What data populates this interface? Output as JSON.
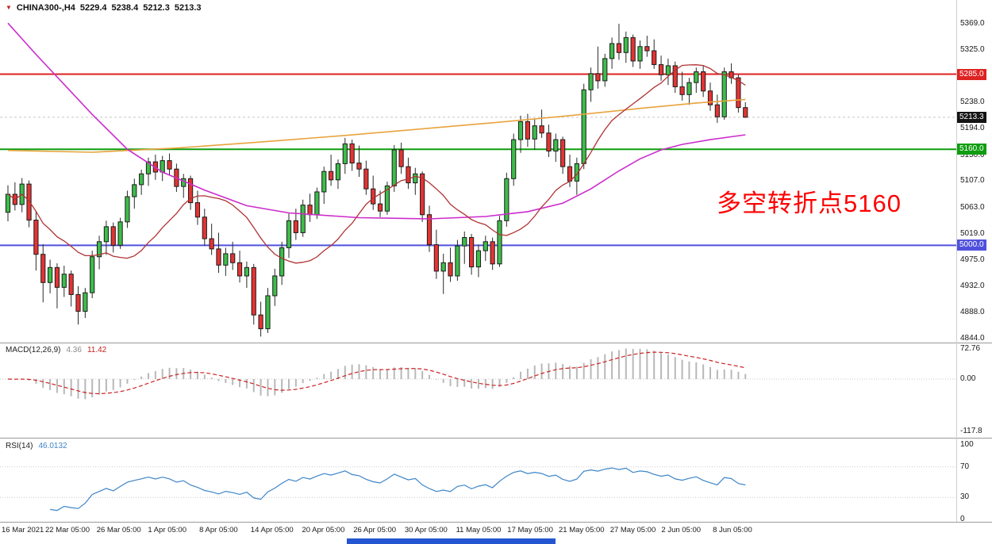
{
  "terminal": {
    "marker_icon": "▼",
    "symbol": "CHINA300-,H4",
    "open": "5229.4",
    "high": "5238.4",
    "low": "5212.3",
    "close": "5213.3"
  },
  "annotation": {
    "text": "多空转折点5160",
    "color": "#ff0000"
  },
  "levels": [
    {
      "value": 5285,
      "color": "#dd2222"
    },
    {
      "value": 5160,
      "color": "#0f9d0f"
    },
    {
      "value": 5000,
      "color": "#5050dd"
    }
  ],
  "current_price": {
    "value": 5213.3
  },
  "price_axis": {
    "ticks": [
      {
        "v": 5369,
        "label": "5369.0"
      },
      {
        "v": 5325,
        "label": "5325.0"
      },
      {
        "v": 5238,
        "label": "5238.0"
      },
      {
        "v": 5194,
        "label": "5194.0"
      },
      {
        "v": 5150,
        "label": "5150.0"
      },
      {
        "v": 5107,
        "label": "5107.0"
      },
      {
        "v": 5063,
        "label": "5063.0"
      },
      {
        "v": 5019,
        "label": "5019.0"
      },
      {
        "v": 4975,
        "label": "4975.0"
      },
      {
        "v": 4932,
        "label": "4932.0"
      },
      {
        "v": 4888,
        "label": "4888.0"
      },
      {
        "v": 4844,
        "label": "4844.0"
      }
    ],
    "badges": [
      {
        "v": 5285,
        "label": "5285.0",
        "color": "#dd2222"
      },
      {
        "v": 5213.3,
        "label": "5213.3",
        "color": "#141414"
      },
      {
        "v": 5160,
        "label": "5160.0",
        "color": "#0f9d0f"
      },
      {
        "v": 5000,
        "label": "5000.0",
        "color": "#5050dd"
      }
    ]
  },
  "time_axis": {
    "labels": [
      "16 Mar 2021",
      "22 Mar 05:00",
      "26 Mar 05:00",
      "1 Apr 05:00",
      "8 Apr 05:00",
      "14 Apr 05:00",
      "20 Apr 05:00",
      "26 Apr 05:00",
      "30 Apr 05:00",
      "11 May 05:00",
      "17 May 05:00",
      "21 May 05:00",
      "27 May 05:00",
      "2 Jun 05:00",
      "8 Jun 05:00"
    ]
  },
  "indicators": {
    "macd": {
      "name": "MACD(12,26,9)",
      "value1": "4.36",
      "value2": "11.42",
      "axis": [
        {
          "v": 72.76,
          "label": "72.76"
        },
        {
          "v": 0,
          "label": "0.00"
        },
        {
          "v": -117.8,
          "label": "-117.8"
        }
      ]
    },
    "rsi": {
      "name": "RSI(14)",
      "value": "46.0132",
      "axis": [
        {
          "v": 100,
          "label": "100"
        },
        {
          "v": 70,
          "label": "70"
        },
        {
          "v": 30,
          "label": "30"
        },
        {
          "v": 0,
          "label": "0"
        }
      ],
      "levels": [
        70,
        30
      ]
    }
  },
  "colors": {
    "bull": "#3dbd4a",
    "bear": "#e53333",
    "candle_border": "#1c1c1c",
    "ma_fast": "#b03333",
    "ma_mid": "#e8a33d",
    "ma_slow": "#cc2ccc",
    "macd_hist": "#b8b8b8",
    "macd_signal": "#cc2222",
    "rsi_line": "#3d85c8",
    "bottom_bar": "#2456d2"
  },
  "chart_data": {
    "type": "candlestick",
    "title": "CHINA300- H4",
    "ylim": [
      4838,
      5398
    ],
    "key_levels": [
      5285,
      5160,
      5000
    ],
    "last_close": 5213.3,
    "candles": [
      [
        5055,
        5100,
        5040,
        5085
      ],
      [
        5085,
        5105,
        5058,
        5068
      ],
      [
        5068,
        5112,
        5055,
        5102
      ],
      [
        5102,
        5108,
        5030,
        5042
      ],
      [
        5042,
        5056,
        4958,
        4985
      ],
      [
        4985,
        5002,
        4905,
        4938
      ],
      [
        4938,
        4976,
        4920,
        4963
      ],
      [
        4963,
        4970,
        4895,
        4930
      ],
      [
        4930,
        4966,
        4914,
        4952
      ],
      [
        4952,
        4958,
        4898,
        4918
      ],
      [
        4918,
        4932,
        4868,
        4890
      ],
      [
        4890,
        4929,
        4879,
        4921
      ],
      [
        4921,
        4991,
        4912,
        4981
      ],
      [
        4981,
        5016,
        4960,
        5006
      ],
      [
        5006,
        5041,
        4984,
        5031
      ],
      [
        5031,
        5038,
        4988,
        5000
      ],
      [
        5000,
        5046,
        4994,
        5039
      ],
      [
        5039,
        5091,
        5029,
        5081
      ],
      [
        5081,
        5111,
        5061,
        5101
      ],
      [
        5101,
        5126,
        5084,
        5119
      ],
      [
        5119,
        5146,
        5099,
        5139
      ],
      [
        5139,
        5151,
        5109,
        5122
      ],
      [
        5122,
        5149,
        5107,
        5141
      ],
      [
        5141,
        5153,
        5117,
        5127
      ],
      [
        5127,
        5136,
        5089,
        5098
      ],
      [
        5098,
        5119,
        5079,
        5111
      ],
      [
        5111,
        5116,
        5059,
        5071
      ],
      [
        5071,
        5091,
        5034,
        5047
      ],
      [
        5047,
        5061,
        4999,
        5011
      ],
      [
        5011,
        5036,
        4984,
        4994
      ],
      [
        4994,
        5021,
        4954,
        4967
      ],
      [
        4967,
        4996,
        4949,
        4986
      ],
      [
        4986,
        5006,
        4959,
        4971
      ],
      [
        4971,
        4991,
        4938,
        4949
      ],
      [
        4949,
        4973,
        4929,
        4963
      ],
      [
        4963,
        4969,
        4868,
        4884
      ],
      [
        4884,
        4906,
        4848,
        4861
      ],
      [
        4861,
        4929,
        4854,
        4916
      ],
      [
        4916,
        4961,
        4899,
        4949
      ],
      [
        4949,
        5006,
        4934,
        4996
      ],
      [
        4996,
        5053,
        4979,
        5041
      ],
      [
        5041,
        5061,
        5009,
        5021
      ],
      [
        5021,
        5076,
        5014,
        5067
      ],
      [
        5067,
        5086,
        5039,
        5051
      ],
      [
        5051,
        5096,
        5044,
        5089
      ],
      [
        5089,
        5131,
        5069,
        5123
      ],
      [
        5123,
        5151,
        5099,
        5109
      ],
      [
        5109,
        5143,
        5094,
        5136
      ],
      [
        5136,
        5179,
        5119,
        5169
      ],
      [
        5169,
        5176,
        5124,
        5137
      ],
      [
        5137,
        5166,
        5114,
        5127
      ],
      [
        5127,
        5141,
        5084,
        5094
      ],
      [
        5094,
        5116,
        5059,
        5069
      ],
      [
        5069,
        5091,
        5047,
        5057
      ],
      [
        5057,
        5106,
        5051,
        5099
      ],
      [
        5099,
        5167,
        5089,
        5159
      ],
      [
        5159,
        5171,
        5119,
        5131
      ],
      [
        5131,
        5146,
        5094,
        5104
      ],
      [
        5104,
        5129,
        5084,
        5119
      ],
      [
        5119,
        5123,
        5039,
        5051
      ],
      [
        5051,
        5066,
        4989,
        5001
      ],
      [
        5001,
        5026,
        4944,
        4957
      ],
      [
        4957,
        4986,
        4919,
        4971
      ],
      [
        4971,
        4996,
        4939,
        4949
      ],
      [
        4949,
        5009,
        4941,
        4999
      ],
      [
        4999,
        5023,
        4969,
        5013
      ],
      [
        5013,
        5019,
        4951,
        4964
      ],
      [
        4964,
        5001,
        4947,
        4991
      ],
      [
        4991,
        5016,
        4974,
        5006
      ],
      [
        5006,
        5013,
        4959,
        4969
      ],
      [
        4969,
        5049,
        4964,
        5041
      ],
      [
        5041,
        5121,
        5031,
        5111
      ],
      [
        5111,
        5186,
        5099,
        5176
      ],
      [
        5176,
        5216,
        5154,
        5206
      ],
      [
        5206,
        5219,
        5164,
        5177
      ],
      [
        5177,
        5211,
        5159,
        5199
      ],
      [
        5199,
        5226,
        5179,
        5187
      ],
      [
        5187,
        5201,
        5147,
        5157
      ],
      [
        5157,
        5186,
        5139,
        5176
      ],
      [
        5176,
        5181,
        5119,
        5131
      ],
      [
        5131,
        5151,
        5097,
        5107
      ],
      [
        5107,
        5146,
        5084,
        5136
      ],
      [
        5136,
        5269,
        5127,
        5259
      ],
      [
        5259,
        5296,
        5239,
        5286
      ],
      [
        5286,
        5331,
        5261,
        5274
      ],
      [
        5274,
        5319,
        5264,
        5311
      ],
      [
        5311,
        5346,
        5294,
        5336
      ],
      [
        5336,
        5369,
        5309,
        5321
      ],
      [
        5321,
        5356,
        5304,
        5346
      ],
      [
        5346,
        5351,
        5297,
        5307
      ],
      [
        5307,
        5341,
        5294,
        5331
      ],
      [
        5331,
        5349,
        5314,
        5324
      ],
      [
        5324,
        5343,
        5294,
        5301
      ],
      [
        5301,
        5316,
        5274,
        5284
      ],
      [
        5284,
        5311,
        5267,
        5299
      ],
      [
        5299,
        5306,
        5254,
        5264
      ],
      [
        5264,
        5289,
        5241,
        5251
      ],
      [
        5251,
        5279,
        5234,
        5271
      ],
      [
        5271,
        5296,
        5254,
        5289
      ],
      [
        5289,
        5299,
        5247,
        5257
      ],
      [
        5257,
        5271,
        5224,
        5234
      ],
      [
        5234,
        5251,
        5204,
        5214
      ],
      [
        5214,
        5296,
        5209,
        5289
      ],
      [
        5289,
        5303,
        5269,
        5279
      ],
      [
        5279,
        5284,
        5221,
        5229.4
      ],
      [
        5229.4,
        5238.4,
        5212.3,
        5213.3
      ]
    ],
    "moving_averages": [
      {
        "name": "ma-orange-line",
        "color_key": "ma_mid",
        "points": [
          [
            0,
            5158
          ],
          [
            12,
            5155
          ],
          [
            24,
            5162
          ],
          [
            36,
            5172
          ],
          [
            48,
            5183
          ],
          [
            60,
            5195
          ],
          [
            70,
            5205
          ],
          [
            80,
            5216
          ],
          [
            90,
            5228
          ],
          [
            98,
            5237
          ],
          [
            105,
            5243
          ]
        ]
      },
      {
        "name": "ma-magenta-line",
        "color_key": "ma_slow",
        "points": [
          [
            0,
            5370
          ],
          [
            4,
            5318
          ],
          [
            8,
            5268
          ],
          [
            12,
            5218
          ],
          [
            17,
            5160
          ],
          [
            22,
            5122
          ],
          [
            28,
            5092
          ],
          [
            34,
            5066
          ],
          [
            40,
            5054
          ],
          [
            50,
            5046
          ],
          [
            60,
            5044
          ],
          [
            68,
            5048
          ],
          [
            74,
            5056
          ],
          [
            79,
            5070
          ],
          [
            83,
            5094
          ],
          [
            87,
            5124
          ],
          [
            90,
            5144
          ],
          [
            93,
            5159
          ],
          [
            96,
            5168
          ],
          [
            100,
            5176
          ],
          [
            105,
            5184
          ]
        ]
      },
      {
        "name": "ma-darkred-line",
        "color_key": "ma_fast",
        "computed": true,
        "period": 15
      }
    ],
    "macd_params": {
      "fast": 12,
      "slow": 26,
      "signal": 9
    },
    "rsi_params": {
      "period": 14
    }
  }
}
